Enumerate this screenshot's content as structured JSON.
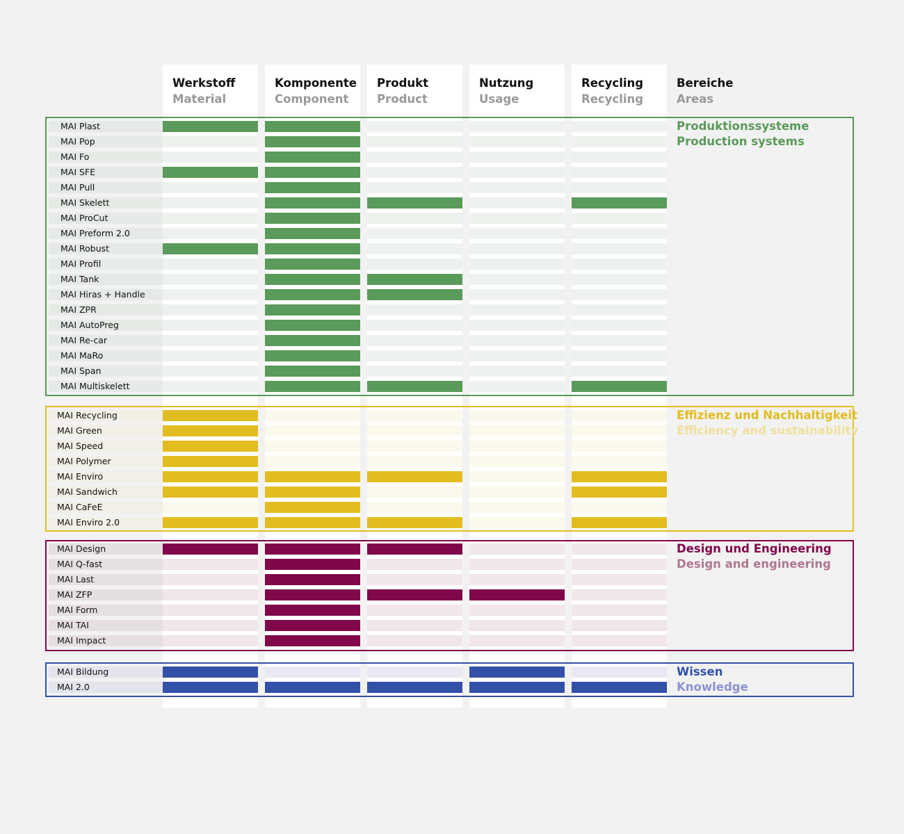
{
  "columns": [
    {
      "de": "Werkstoff",
      "en": "Material"
    },
    {
      "de": "Komponente",
      "en": "Component"
    },
    {
      "de": "Produkt",
      "en": "Product"
    },
    {
      "de": "Nutzung",
      "en": "Usage"
    },
    {
      "de": "Recycling",
      "en": "Recycling"
    }
  ],
  "areas_header": {
    "de": "Bereiche",
    "en": "Areas"
  },
  "groups": [
    {
      "de": "Produktionssysteme",
      "en": "Production systems",
      "color": "#5a9a5a",
      "subcolor": "#5a9a5a",
      "empty": "#eef2ee",
      "labelbg": "#e6eae6",
      "border": "#5a9a5a",
      "rows": [
        {
          "name": "MAI Plast",
          "cells": [
            1,
            1,
            0,
            0,
            0
          ]
        },
        {
          "name": "MAI Pop",
          "cells": [
            0,
            1,
            0,
            0,
            0
          ]
        },
        {
          "name": "MAI Fo",
          "cells": [
            0,
            1,
            0,
            0,
            0
          ]
        },
        {
          "name": "MAI SFE",
          "cells": [
            1,
            1,
            0,
            0,
            0
          ]
        },
        {
          "name": "MAI Pull",
          "cells": [
            0,
            1,
            0,
            0,
            0
          ]
        },
        {
          "name": "MAI Skelett",
          "cells": [
            0,
            1,
            1,
            0,
            1
          ]
        },
        {
          "name": "MAI ProCut",
          "cells": [
            0,
            1,
            0,
            0,
            0
          ]
        },
        {
          "name": "MAI Preform 2.0",
          "cells": [
            0,
            1,
            0,
            0,
            0
          ]
        },
        {
          "name": "MAI Robust",
          "cells": [
            1,
            1,
            0,
            0,
            0
          ]
        },
        {
          "name": "MAI Profil",
          "cells": [
            0,
            1,
            0,
            0,
            0
          ]
        },
        {
          "name": "MAI Tank",
          "cells": [
            0,
            1,
            1,
            0,
            0
          ]
        },
        {
          "name": "MAI Hiras + Handle",
          "cells": [
            0,
            1,
            1,
            0,
            0
          ]
        },
        {
          "name": "MAI ZPR",
          "cells": [
            0,
            1,
            0,
            0,
            0
          ]
        },
        {
          "name": "MAI AutoPreg",
          "cells": [
            0,
            1,
            0,
            0,
            0
          ]
        },
        {
          "name": "MAI Re-car",
          "cells": [
            0,
            1,
            0,
            0,
            0
          ]
        },
        {
          "name": "MAI MaRo",
          "cells": [
            0,
            1,
            0,
            0,
            0
          ]
        },
        {
          "name": "MAI Span",
          "cells": [
            0,
            1,
            0,
            0,
            0
          ]
        },
        {
          "name": "MAI Multiskelett",
          "cells": [
            0,
            1,
            1,
            0,
            1
          ]
        }
      ]
    },
    {
      "de": "Effizienz und Nachhaltigkeit",
      "en": "Efficiency and sustainability",
      "color": "#e2bd22",
      "subcolor": "#efdf9c",
      "empty": "#fbf9ec",
      "labelbg": "#f1efe6",
      "border": "#e2bd22",
      "rows": [
        {
          "name": "MAI Recycling",
          "cells": [
            1,
            0,
            0,
            0,
            0
          ]
        },
        {
          "name": "MAI Green",
          "cells": [
            1,
            0,
            0,
            0,
            0
          ]
        },
        {
          "name": "MAI Speed",
          "cells": [
            1,
            0,
            0,
            0,
            0
          ]
        },
        {
          "name": "MAI Polymer",
          "cells": [
            1,
            0,
            0,
            0,
            0
          ]
        },
        {
          "name": "MAI Enviro",
          "cells": [
            1,
            1,
            1,
            0,
            1
          ]
        },
        {
          "name": "MAI Sandwich",
          "cells": [
            1,
            1,
            0,
            0,
            1
          ]
        },
        {
          "name": "MAI CaFeE",
          "cells": [
            0,
            1,
            0,
            0,
            0
          ]
        },
        {
          "name": "MAI Enviro 2.0",
          "cells": [
            1,
            1,
            1,
            0,
            1
          ]
        }
      ]
    },
    {
      "de": "Design und Engineering",
      "en": "Design and engineering",
      "color": "#80074a",
      "subcolor": "#b07890",
      "empty": "#f1e6ea",
      "labelbg": "#e6dfe2",
      "border": "#80074a",
      "rows": [
        {
          "name": "MAI Design",
          "cells": [
            1,
            1,
            1,
            0,
            0
          ]
        },
        {
          "name": "MAI Q-fast",
          "cells": [
            0,
            1,
            0,
            0,
            0
          ]
        },
        {
          "name": "MAI Last",
          "cells": [
            0,
            1,
            0,
            0,
            0
          ]
        },
        {
          "name": "MAI ZFP",
          "cells": [
            0,
            1,
            1,
            1,
            0
          ]
        },
        {
          "name": "MAI Form",
          "cells": [
            0,
            1,
            0,
            0,
            0
          ]
        },
        {
          "name": "MAI TAI",
          "cells": [
            0,
            1,
            0,
            0,
            0
          ]
        },
        {
          "name": "MAI Impact",
          "cells": [
            0,
            1,
            0,
            0,
            0
          ]
        }
      ]
    },
    {
      "de": "Wissen",
      "en": "Knowledge",
      "color": "#3350a8",
      "subcolor": "#8d93d0",
      "empty": "#e9e9f4",
      "labelbg": "#e4e4ec",
      "border": "#3350a8",
      "rows": [
        {
          "name": "MAI Bildung",
          "cells": [
            1,
            0,
            0,
            1,
            0
          ]
        },
        {
          "name": "MAI 2.0",
          "cells": [
            1,
            1,
            1,
            1,
            1
          ]
        }
      ]
    }
  ]
}
